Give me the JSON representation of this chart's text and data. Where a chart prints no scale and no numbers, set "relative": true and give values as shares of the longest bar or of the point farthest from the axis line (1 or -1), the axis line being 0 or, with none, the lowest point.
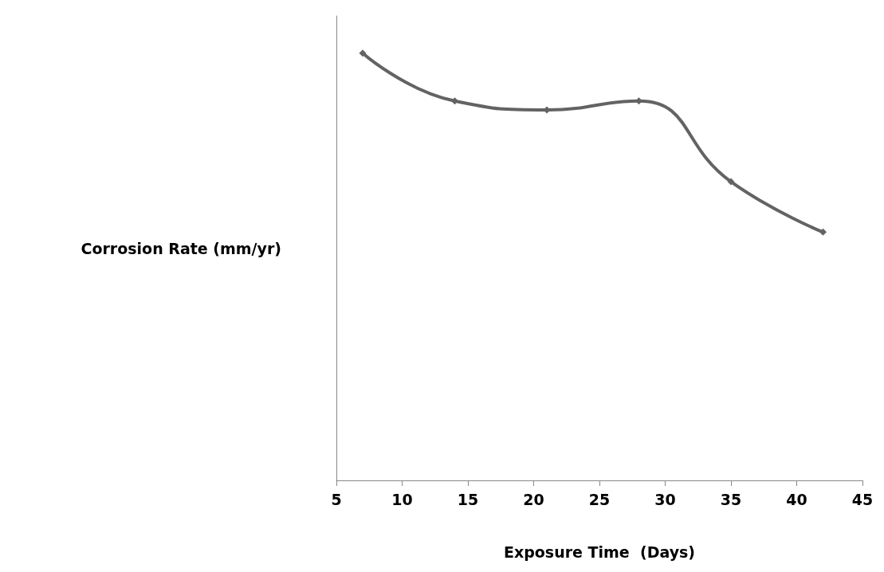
{
  "chart_data": {
    "type": "line",
    "xlabel": "Exposure Time  (Days)",
    "ylabel": "Corrosion Rate (mm/yr)",
    "x": [
      7,
      14,
      21,
      28,
      35,
      42
    ],
    "series": [
      {
        "color": "#636363",
        "values": [
          1,
          0.888,
          0.867,
          0.888,
          0.699,
          0.581
        ]
      }
    ],
    "relative": true,
    "xlim": [
      5,
      45
    ],
    "xticks": [
      5,
      10,
      15,
      20,
      25,
      30,
      35,
      40,
      45
    ],
    "grid": false,
    "marker": "diamond",
    "line_style": "solid"
  }
}
